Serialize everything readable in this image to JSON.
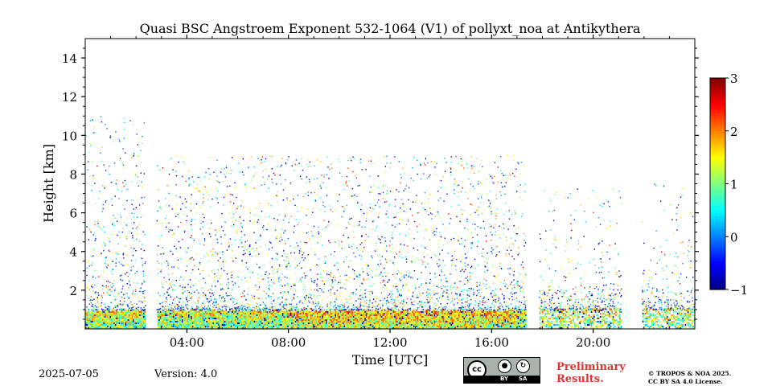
{
  "chart_data": {
    "type": "heatmap",
    "title": "Quasi BSC Angstroem Exponent 532-1064 (V1) of pollyxt_noa at Antikythera",
    "xlabel": "Time [UTC]",
    "ylabel": "Height [km]",
    "xlim_hours": [
      0,
      24
    ],
    "ylim_km": [
      0,
      15
    ],
    "x_tick_labels": [
      "04:00",
      "08:00",
      "12:00",
      "16:00",
      "20:00"
    ],
    "x_tick_values_hours": [
      4,
      8,
      12,
      16,
      20
    ],
    "y_tick_labels": [
      "2",
      "4",
      "6",
      "8",
      "10",
      "12",
      "14"
    ],
    "y_tick_values_km": [
      2,
      4,
      6,
      8,
      10,
      12,
      14
    ],
    "colorbar": {
      "range": [
        -1,
        3
      ],
      "tick_labels": [
        "3",
        "2",
        "1",
        "0",
        "−1"
      ],
      "tick_values": [
        3,
        2,
        1,
        0,
        -1
      ],
      "colormap": "jet"
    },
    "data_gaps_hours": [
      [
        2.35,
        2.8
      ],
      [
        17.35,
        17.85
      ],
      [
        21.1,
        21.9
      ]
    ],
    "boundary_layer_top_km": 1.0,
    "grid": false
  },
  "footer": {
    "date": "2025-07-05",
    "version": "Version: 4.0",
    "license_badge": {
      "cc": "cc",
      "by": "BY",
      "sa": "SA"
    },
    "preliminary_line1": "Preliminary",
    "preliminary_line2": "Results.",
    "copyright_line1": "© TROPOS & NOA 2025.",
    "copyright_line2": "CC BY SA 4.0 License."
  },
  "colors": {
    "preliminary": "#e8312f",
    "badge_background": "#aab2ab"
  }
}
